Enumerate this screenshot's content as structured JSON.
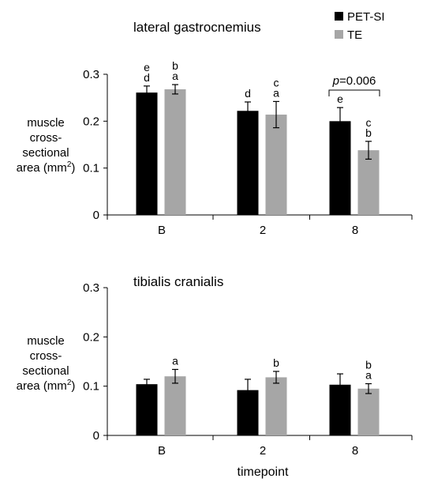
{
  "legend": {
    "placement": "top-right",
    "entries": [
      {
        "label": "PET-SI",
        "color": "#000000"
      },
      {
        "label": "TE",
        "color": "#a6a6a6"
      }
    ]
  },
  "colors": {
    "PET-SI": "#000000",
    "TE": "#a6a6a6",
    "errorbar": "#000000",
    "axis": "#000000"
  },
  "chart_data": [
    {
      "type": "bar",
      "title": "lateral gastrocnemius",
      "ylabel_lines": [
        "muscle",
        "cross-",
        "sectional",
        "area (mm",
        "2",
        ")"
      ],
      "xlabel": "",
      "categories": [
        "B",
        "2",
        "8"
      ],
      "ylim": [
        0,
        0.3
      ],
      "yticks": [
        "0",
        "0.1",
        "0.2",
        "0.3"
      ],
      "grid": false,
      "series": [
        {
          "name": "PET-SI",
          "values": [
            0.261,
            0.222,
            0.2
          ],
          "errors": [
            0.014,
            0.019,
            0.029
          ],
          "letters": [
            [
              "e",
              "d"
            ],
            [
              "d"
            ],
            [
              "e"
            ]
          ]
        },
        {
          "name": "TE",
          "values": [
            0.268,
            0.214,
            0.138
          ],
          "errors": [
            0.01,
            0.028,
            0.019
          ],
          "letters": [
            [
              "b",
              "a"
            ],
            [
              "c",
              "a"
            ],
            [
              "c",
              "b"
            ]
          ]
        }
      ],
      "annotation": {
        "italic": "p",
        "text": "=0.006",
        "category": "8"
      }
    },
    {
      "type": "bar",
      "title": "tibialis cranialis",
      "ylabel_lines": [
        "muscle",
        "cross-",
        "sectional",
        "area (mm",
        "2",
        ")"
      ],
      "xlabel": "timepoint",
      "categories": [
        "B",
        "2",
        "8"
      ],
      "ylim": [
        0,
        0.3
      ],
      "yticks": [
        "0",
        "0.1",
        "0.2",
        "0.3"
      ],
      "grid": false,
      "series": [
        {
          "name": "PET-SI",
          "values": [
            0.104,
            0.092,
            0.103
          ],
          "errors": [
            0.01,
            0.022,
            0.022
          ],
          "letters": [
            [],
            [],
            []
          ]
        },
        {
          "name": "TE",
          "values": [
            0.12,
            0.118,
            0.095
          ],
          "errors": [
            0.014,
            0.012,
            0.01
          ],
          "letters": [
            [
              "a"
            ],
            [
              "b"
            ],
            [
              "b",
              "a"
            ]
          ]
        }
      ]
    }
  ]
}
